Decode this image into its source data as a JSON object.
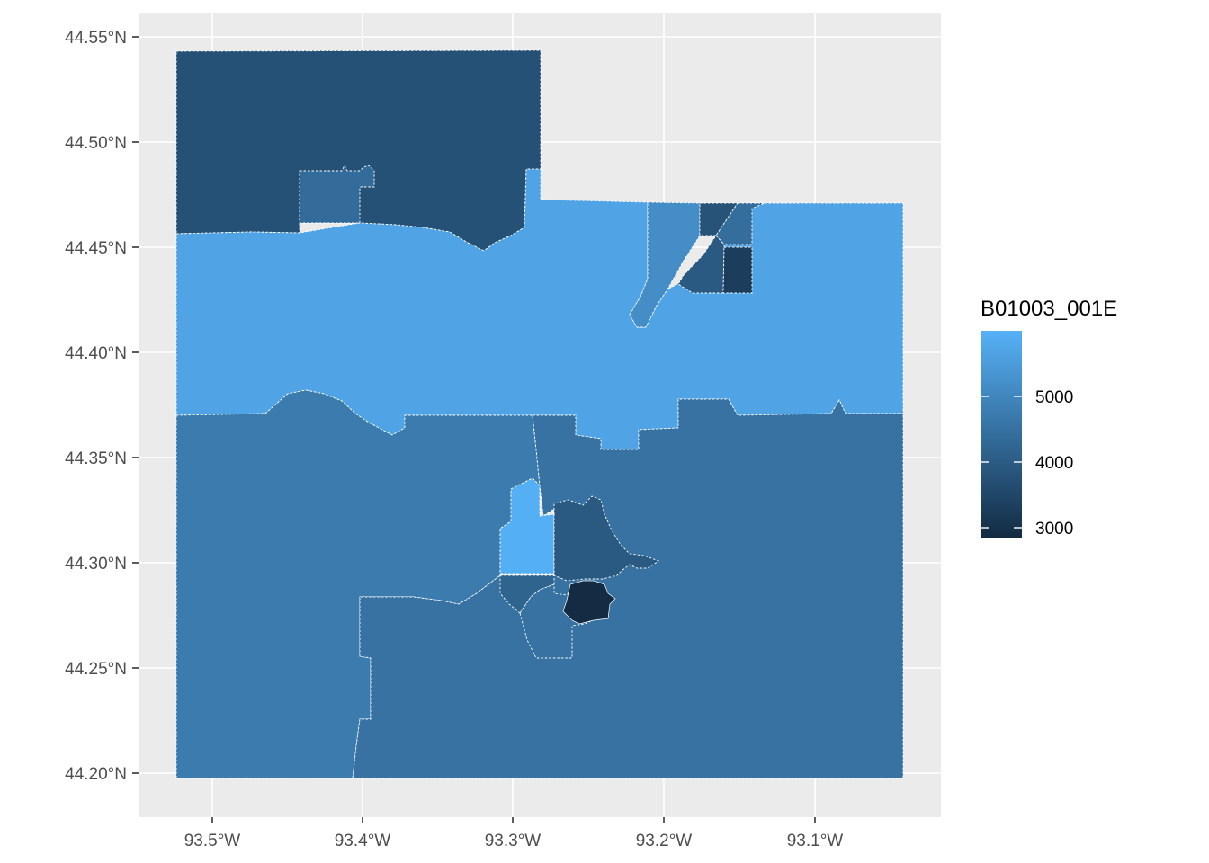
{
  "colors": {
    "panel_background": "#ebebeb",
    "grid_line": "#ffffff",
    "scale_low": "#132b43",
    "scale_high": "#56b1f7"
  },
  "axes": {
    "x_ticks": [
      "93.5°W",
      "93.4°W",
      "93.3°W",
      "93.2°W",
      "93.1°W"
    ],
    "y_ticks": [
      "44.55°N",
      "44.50°N",
      "44.45°N",
      "44.40°N",
      "44.35°N",
      "44.30°N",
      "44.25°N",
      "44.20°N"
    ]
  },
  "legend": {
    "title": "B01003_001E",
    "labels": [
      "5000",
      "4000",
      "3000"
    ],
    "placement": "right"
  },
  "tracts": [
    {
      "id": "north-west",
      "value": 3700
    },
    {
      "id": "north-inset",
      "value": 4350
    },
    {
      "id": "central-band",
      "value": 5700
    },
    {
      "id": "east-strip",
      "value": 5150
    },
    {
      "id": "east-top-small",
      "value": 3750
    },
    {
      "id": "east-top-right",
      "value": 4400
    },
    {
      "id": "east-mid-left",
      "value": 3900
    },
    {
      "id": "east-mid-right",
      "value": 3250
    },
    {
      "id": "south-west",
      "value": 4700
    },
    {
      "id": "south-east",
      "value": 4500
    },
    {
      "id": "center-light",
      "value": 5950
    },
    {
      "id": "center-dark",
      "value": 3900
    },
    {
      "id": "center-small-left",
      "value": 4150
    },
    {
      "id": "center-south",
      "value": 4500
    },
    {
      "id": "center-darkest",
      "value": 2800
    }
  ],
  "scale": {
    "min": 2800,
    "max": 6000
  }
}
